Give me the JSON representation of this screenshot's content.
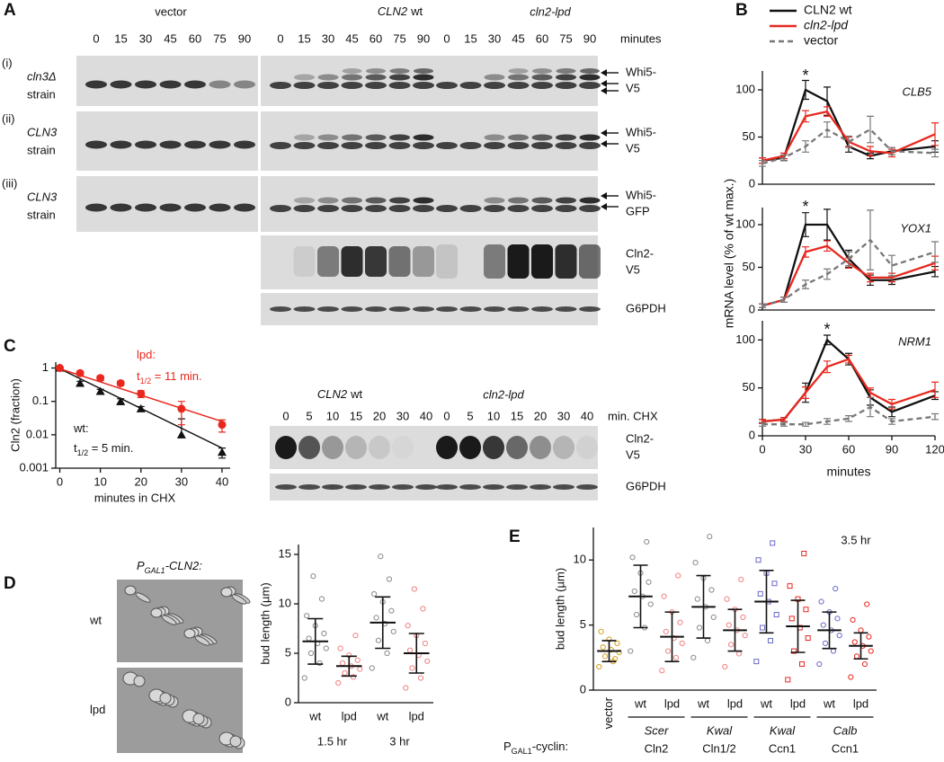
{
  "panels": [
    "A",
    "B",
    "C",
    "D",
    "E"
  ],
  "blot_a": {
    "vector_label": "vector",
    "wt_label": {
      "gene": "CLN2",
      "rest": "wt"
    },
    "lpd_label": "cln2-lpd",
    "lanes_vector": [
      0,
      15,
      30,
      45,
      60,
      75,
      90
    ],
    "lanes_wt": [
      0,
      15,
      30,
      45,
      60,
      75,
      90
    ],
    "lanes_lpd": [
      0,
      15,
      30,
      45,
      60,
      75,
      90
    ],
    "unit": "minutes",
    "rows": [
      {
        "index": "(i)",
        "strain": [
          "cln3Δ",
          "strain"
        ],
        "protein": [
          "Whi5-",
          "V5"
        ]
      },
      {
        "index": "(ii)",
        "strain": [
          "CLN3",
          "strain"
        ],
        "protein": [
          "Whi5-",
          "V5"
        ]
      },
      {
        "index": "(iii)",
        "strain": [
          "CLN3",
          "strain"
        ],
        "protein": [
          "Whi5-",
          "GFP"
        ]
      },
      {
        "protein": [
          "Cln2-",
          "V5"
        ]
      },
      {
        "protein": [
          "G6PDH"
        ]
      }
    ]
  },
  "blot_c": {
    "wt_label": {
      "gene": "CLN2",
      "rest": "wt"
    },
    "lpd_label": "cln2-lpd",
    "lanes_wt": [
      0,
      5,
      10,
      15,
      20,
      30,
      40
    ],
    "lanes_lpd": [
      0,
      5,
      10,
      15,
      20,
      30,
      40
    ],
    "unit": "min. CHX",
    "rows": [
      {
        "protein": [
          "Cln2-",
          "V5"
        ]
      },
      {
        "protein": [
          "G6PDH"
        ]
      }
    ]
  },
  "panel_b": {
    "ylabel": "mRNA level (% of wt max.)",
    "xlabel": "minutes"
  },
  "chart_data": [
    {
      "type": "line",
      "title": "CLB5",
      "x": [
        0,
        15,
        30,
        45,
        60,
        75,
        90,
        120
      ],
      "xlim": [
        0,
        120
      ],
      "ylim": [
        0,
        120
      ],
      "yticks": [
        0,
        50,
        100
      ],
      "series": [
        {
          "name": "CLN2 wt",
          "color": "#111111",
          "values": [
            25,
            28,
            100,
            88,
            40,
            30,
            35,
            40
          ],
          "errors": [
            3,
            3,
            10,
            15,
            6,
            3,
            4,
            6
          ]
        },
        {
          "name": "cln2-lpd",
          "color": "#e8281e",
          "values": [
            25,
            30,
            72,
            77,
            45,
            35,
            33,
            53
          ],
          "errors": [
            3,
            3,
            6,
            5,
            5,
            5,
            4,
            12
          ]
        },
        {
          "name": "vector",
          "color": "#777777",
          "dash": true,
          "values": [
            22,
            28,
            40,
            58,
            45,
            58,
            35,
            33
          ],
          "errors": [
            3,
            3,
            6,
            8,
            6,
            14,
            4,
            4
          ]
        }
      ],
      "annotations": [
        {
          "text": "*",
          "x": 30,
          "y": 114
        }
      ]
    },
    {
      "type": "line",
      "title": "YOX1",
      "x": [
        0,
        15,
        30,
        45,
        60,
        75,
        90,
        120
      ],
      "xlim": [
        0,
        120
      ],
      "ylim": [
        0,
        120
      ],
      "yticks": [
        0,
        50,
        100
      ],
      "series": [
        {
          "color": "#111111",
          "values": [
            5,
            12,
            100,
            100,
            60,
            35,
            35,
            45
          ],
          "errors": [
            2,
            3,
            14,
            18,
            10,
            6,
            5,
            6
          ]
        },
        {
          "color": "#e8281e",
          "values": [
            5,
            12,
            68,
            75,
            55,
            38,
            38,
            55
          ],
          "errors": [
            2,
            3,
            6,
            6,
            6,
            5,
            5,
            8
          ]
        },
        {
          "color": "#777777",
          "dash": true,
          "values": [
            5,
            12,
            30,
            42,
            60,
            82,
            52,
            68
          ],
          "errors": [
            2,
            3,
            5,
            6,
            8,
            35,
            12,
            12
          ]
        }
      ],
      "annotations": [
        {
          "text": "*",
          "x": 30,
          "y": 120
        }
      ]
    },
    {
      "type": "line",
      "title": "NRM1",
      "x": [
        0,
        15,
        30,
        45,
        60,
        75,
        90,
        120
      ],
      "xlim": [
        0,
        120
      ],
      "ylim": [
        0,
        120
      ],
      "yticks": [
        0,
        50,
        100
      ],
      "xticks": [
        0,
        30,
        60,
        90,
        120
      ],
      "series": [
        {
          "color": "#111111",
          "values": [
            15,
            17,
            45,
            100,
            80,
            40,
            25,
            42
          ],
          "errors": [
            2,
            2,
            10,
            5,
            6,
            8,
            5,
            4
          ]
        },
        {
          "color": "#e8281e",
          "values": [
            15,
            17,
            45,
            72,
            80,
            45,
            33,
            48
          ],
          "errors": [
            2,
            2,
            6,
            6,
            4,
            5,
            5,
            8
          ]
        },
        {
          "color": "#777777",
          "dash": true,
          "values": [
            12,
            12,
            12,
            15,
            18,
            30,
            15,
            20
          ],
          "errors": [
            2,
            2,
            2,
            3,
            3,
            10,
            3,
            3
          ]
        }
      ],
      "annotations": [
        {
          "text": "*",
          "x": 45,
          "y": 110
        }
      ]
    },
    {
      "type": "line",
      "log_y": true,
      "ylabel": "Cln2 (fraction)",
      "xlabel": "minutes in CHX",
      "x": [
        0,
        5,
        10,
        15,
        20,
        30,
        40
      ],
      "xlim": [
        -1,
        42
      ],
      "xticks": [
        0,
        10,
        20,
        30,
        40
      ],
      "ylim": [
        0.001,
        1.5
      ],
      "yticks": [
        0.001,
        0.01,
        0.1,
        1
      ],
      "series": [
        {
          "color": "#111111",
          "marker": "triangle",
          "values": [
            1,
            0.35,
            0.2,
            0.1,
            0.06,
            0.01,
            0.003
          ],
          "errors": [
            0.05,
            0.05,
            0.03,
            0.02,
            0.01,
            0.02,
            0.001
          ],
          "fit_x": [
            0,
            40
          ],
          "fit_values": [
            0.95,
            0.004
          ]
        },
        {
          "color": "#e8281e",
          "marker": "circle",
          "values": [
            1,
            0.7,
            0.5,
            0.35,
            0.17,
            0.06,
            0.02
          ],
          "errors": [
            0.05,
            0.1,
            0.08,
            0.05,
            0.04,
            0.04,
            0.008
          ],
          "fit_x": [
            0,
            40
          ],
          "fit_values": [
            0.95,
            0.025
          ]
        }
      ],
      "notes": [
        {
          "parts": [
            "lpd:"
          ],
          "color": "#e8281e"
        },
        {
          "parts": [
            "t",
            "1/2",
            " = 11 min."
          ],
          "color": "#e8281e"
        },
        {
          "parts": [
            "wt:"
          ],
          "color": "#111111"
        },
        {
          "parts": [
            "t",
            "1/2",
            " = 5 min."
          ],
          "color": "#111111"
        }
      ]
    },
    {
      "type": "dotplot",
      "ylabel": "bud length (µm)",
      "ylim": [
        0,
        16
      ],
      "yticks": [
        0,
        5,
        10,
        15
      ],
      "categories": [
        "wt",
        "lpd",
        "wt",
        "lpd"
      ],
      "group_labels": [
        [
          "1.5 hr"
        ],
        [
          "3 hr"
        ]
      ],
      "colors": [
        "#8a8a8a",
        "#f08080",
        "#8a8a8a",
        "#f08080"
      ],
      "markers": [
        "circle",
        "circle",
        "circle",
        "circle"
      ],
      "means": [
        6.2,
        3.7,
        8.1,
        5.0
      ],
      "sds": [
        2.3,
        1.0,
        2.6,
        2.0
      ],
      "points": [
        [
          2.5,
          4.0,
          5.0,
          5.5,
          6.0,
          6.5,
          7.0,
          7.8,
          8.8,
          10.5,
          12.8
        ],
        [
          2.0,
          2.6,
          3.0,
          3.4,
          3.7,
          4.0,
          4.3,
          4.8,
          5.5,
          6.8
        ],
        [
          3.5,
          5.0,
          6.3,
          7.2,
          8.0,
          8.6,
          9.3,
          10.2,
          11.0,
          12.5,
          14.8
        ],
        [
          1.5,
          2.5,
          3.5,
          4.2,
          4.8,
          5.3,
          6.0,
          6.8,
          7.8,
          9.5,
          11.5
        ]
      ],
      "image_title": [
        "P",
        "GAL1",
        "-CLN2:"
      ],
      "image_rows": [
        "wt",
        "lpd"
      ]
    },
    {
      "type": "dotplot",
      "ylabel": "bud length (µm)",
      "ylim": [
        0,
        12.5
      ],
      "yticks": [
        0,
        5,
        10
      ],
      "annotation": "3.5 hr",
      "xlabel_prefix": [
        "P",
        "GAL1",
        "-cyclin:"
      ],
      "categories": [
        "vector",
        "wt",
        "lpd",
        "wt",
        "lpd",
        "wt",
        "lpd",
        "wt",
        "lpd"
      ],
      "group_labels": [
        [
          "Scer",
          "Cln2"
        ],
        [
          "Kwal",
          "Cln1/2"
        ],
        [
          "Kwal",
          "Ccn1"
        ],
        [
          "Calb",
          "Ccn1"
        ]
      ],
      "colors": [
        "#d4a017",
        "#8a8a8a",
        "#f08080",
        "#8a8a8a",
        "#f08080",
        "#6a6ac8",
        "#e8281e",
        "#6a6ac8",
        "#e8281e"
      ],
      "markers": [
        "circle",
        "circle",
        "circle",
        "circle",
        "circle",
        "square",
        "square",
        "circle",
        "circle"
      ],
      "means": [
        3.0,
        7.2,
        4.1,
        6.4,
        4.6,
        6.8,
        4.9,
        4.6,
        3.4
      ],
      "sds": [
        0.8,
        2.4,
        1.9,
        2.4,
        1.6,
        2.4,
        2.0,
        1.4,
        1.0
      ],
      "points": [
        [
          1.8,
          2.2,
          2.6,
          2.9,
          3.1,
          3.3,
          3.6,
          3.9,
          4.5,
          2.4
        ],
        [
          3.0,
          4.8,
          5.8,
          6.6,
          7.2,
          7.6,
          8.3,
          9.0,
          10.2,
          11.4
        ],
        [
          1.5,
          2.5,
          3.0,
          3.6,
          4.0,
          4.5,
          5.2,
          6.0,
          7.2,
          8.8
        ],
        [
          2.5,
          3.8,
          4.8,
          5.6,
          6.4,
          7.0,
          7.7,
          8.6,
          9.8,
          11.8
        ],
        [
          1.8,
          2.8,
          3.5,
          4.2,
          4.6,
          5.0,
          5.6,
          6.2,
          7.0,
          8.5
        ],
        [
          2.2,
          3.8,
          4.8,
          5.8,
          6.8,
          7.4,
          8.2,
          9.0,
          10.0,
          11.3
        ],
        [
          0.8,
          2.0,
          3.0,
          4.0,
          4.8,
          5.5,
          6.2,
          7.0,
          8.0,
          10.5
        ],
        [
          2.0,
          3.0,
          3.6,
          4.2,
          4.6,
          5.0,
          5.5,
          6.0,
          6.8,
          7.8
        ],
        [
          1.0,
          2.0,
          2.6,
          3.0,
          3.4,
          3.7,
          4.1,
          4.6,
          5.4,
          6.6
        ]
      ]
    }
  ]
}
